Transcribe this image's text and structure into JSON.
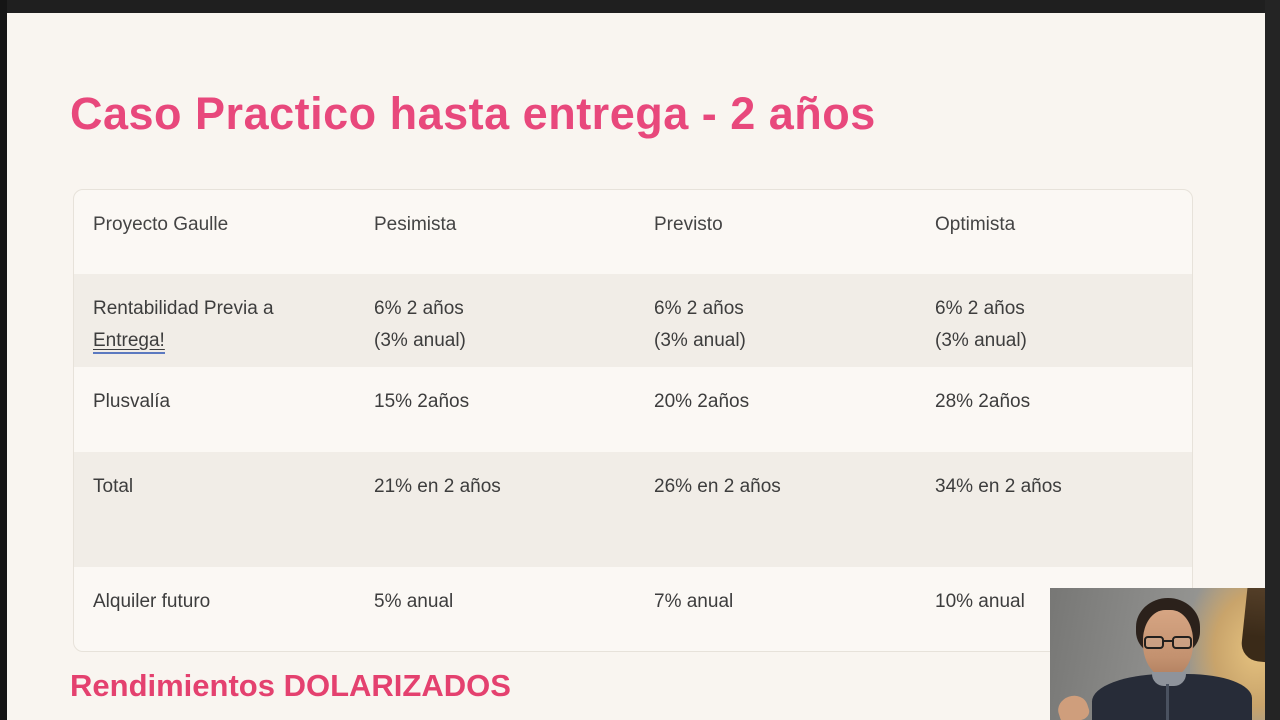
{
  "slide": {
    "title": "Caso Practico hasta entrega - 2 años",
    "footer": "Rendimientos DOLARIZADOS",
    "accent_pink": "#e8487c",
    "background": "#f9f5f0"
  },
  "table": {
    "headers": [
      "Proyecto Gaulle",
      "Pesimista",
      "Previsto",
      "Optimista"
    ],
    "rows": [
      {
        "label": "Rentabilidad Previa a",
        "label_link": "Entrega!",
        "cells": [
          [
            "6% 2 años",
            "(3% anual)"
          ],
          [
            "6% 2 años",
            "(3% anual)"
          ],
          [
            "6% 2 años",
            "(3% anual)"
          ]
        ]
      },
      {
        "label": "Plusvalía",
        "cells": [
          [
            "15% 2años"
          ],
          [
            "20% 2años"
          ],
          [
            "28% 2años"
          ]
        ]
      },
      {
        "label": "Total",
        "cells": [
          [
            "21% en 2 años"
          ],
          [
            "26% en 2 años"
          ],
          [
            "34% en 2 años"
          ]
        ]
      },
      {
        "label": "Alquiler futuro",
        "cells": [
          [
            "5% anual"
          ],
          [
            "7% anual"
          ],
          [
            "10% anual"
          ]
        ]
      }
    ]
  },
  "webcam": {
    "description": "presenter video feed"
  }
}
